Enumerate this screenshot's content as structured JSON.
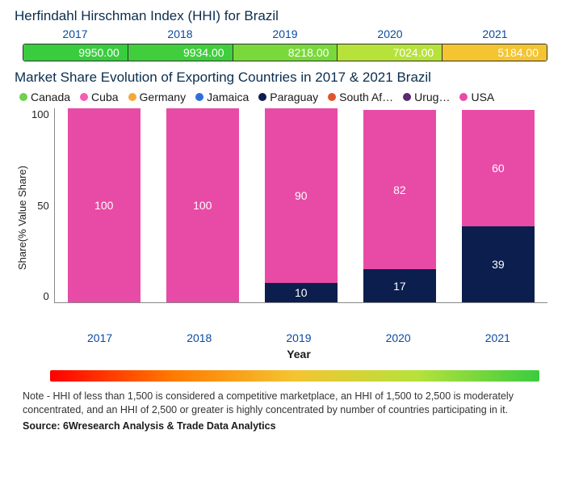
{
  "hhi": {
    "title": "Herfindahl Hirschman Index (HHI) for Brazil",
    "cells": [
      {
        "year": "2017",
        "value": "9950.00",
        "color": "#3acc3f"
      },
      {
        "year": "2018",
        "value": "9934.00",
        "color": "#40ce3d"
      },
      {
        "year": "2019",
        "value": "8218.00",
        "color": "#7ad93a"
      },
      {
        "year": "2020",
        "value": "7024.00",
        "color": "#b6e23a"
      },
      {
        "year": "2021",
        "value": "5184.00",
        "color": "#f4c431"
      }
    ],
    "year_color": "#0a4aa3",
    "value_text_color": "#ffffff"
  },
  "share_chart": {
    "title": "Market Share Evolution of Exporting Countries in 2017 & 2021 Brazil",
    "legend": [
      {
        "label": "Canada",
        "color": "#6fd04f"
      },
      {
        "label": "Cuba",
        "color": "#f45fb3"
      },
      {
        "label": "Germany",
        "color": "#f2a93c"
      },
      {
        "label": "Jamaica",
        "color": "#2f6fd6"
      },
      {
        "label": "Paraguay",
        "color": "#0b1e4d"
      },
      {
        "label": "South Af…",
        "color": "#e0542e"
      },
      {
        "label": "Urug…",
        "color": "#5a2a70"
      },
      {
        "label": "USA",
        "color": "#e84ba6"
      }
    ],
    "ylabel": "Share(% Value Share)",
    "xlabel": "Year",
    "ymax": 100,
    "yticks": [
      "100",
      "50",
      "0"
    ],
    "bars": [
      {
        "year": "2017",
        "segments": [
          {
            "label": "100",
            "value": 100,
            "color": "#e84ba6"
          }
        ]
      },
      {
        "year": "2018",
        "segments": [
          {
            "label": "100",
            "value": 100,
            "color": "#e84ba6"
          }
        ]
      },
      {
        "year": "2019",
        "segments": [
          {
            "label": "10",
            "value": 10,
            "color": "#0b1e4d"
          },
          {
            "label": "90",
            "value": 90,
            "color": "#e84ba6"
          }
        ]
      },
      {
        "year": "2020",
        "segments": [
          {
            "label": "17",
            "value": 17,
            "color": "#0b1e4d"
          },
          {
            "label": "82",
            "value": 82,
            "color": "#e84ba6"
          }
        ]
      },
      {
        "year": "2021",
        "segments": [
          {
            "label": "39",
            "value": 39,
            "color": "#0b1e4d"
          },
          {
            "label": "60",
            "value": 60,
            "color": "#e84ba6"
          }
        ]
      }
    ],
    "font": {
      "tick_color": "#222",
      "xtick_color": "#0a4aa3"
    }
  },
  "gradient": {
    "stops": [
      "#ff0000",
      "#ff7a00",
      "#f4c431",
      "#b6e23a",
      "#3acc3f"
    ]
  },
  "note": "Note - HHI of less than 1,500 is considered a competitive marketplace, an HHI of 1,500 to 2,500 is moderately concentrated, and an HHI of 2,500 or greater is highly concentrated by number of countries participating in it.",
  "source": "Source: 6Wresearch Analysis & Trade Data Analytics"
}
